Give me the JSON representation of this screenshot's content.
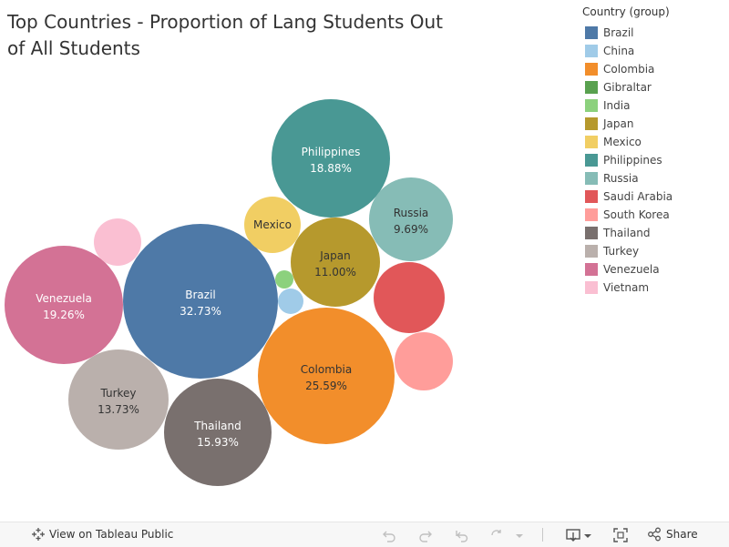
{
  "title": "Top Countries - Proportion of Lang Students Out of All Students",
  "legend": {
    "title": "Country (group)",
    "items": [
      {
        "label": "Brazil",
        "color": "#4e79a7"
      },
      {
        "label": "China",
        "color": "#a0cbe8"
      },
      {
        "label": "Colombia",
        "color": "#f28e2b"
      },
      {
        "label": "Gibraltar",
        "color": "#59a14f"
      },
      {
        "label": "India",
        "color": "#8cd17d"
      },
      {
        "label": "Japan",
        "color": "#b6992d"
      },
      {
        "label": "Mexico",
        "color": "#f1ce63"
      },
      {
        "label": "Philippines",
        "color": "#499894"
      },
      {
        "label": "Russia",
        "color": "#86bcb6"
      },
      {
        "label": "Saudi Arabia",
        "color": "#e15759"
      },
      {
        "label": "South Korea",
        "color": "#ff9d9a"
      },
      {
        "label": "Thailand",
        "color": "#79706e"
      },
      {
        "label": "Turkey",
        "color": "#bab0ac"
      },
      {
        "label": "Venezuela",
        "color": "#d37295"
      },
      {
        "label": "Vietnam",
        "color": "#fabfd2"
      }
    ]
  },
  "chart_data": {
    "type": "bubble",
    "title": "Top Countries - Proportion of Lang Students Out of All Students",
    "legend_position": "top-right",
    "series": [
      {
        "name": "Brazil",
        "value": 32.73,
        "label": "32.73%",
        "color": "#4e79a7"
      },
      {
        "name": "Colombia",
        "value": 25.59,
        "label": "25.59%",
        "color": "#f28e2b"
      },
      {
        "name": "Venezuela",
        "value": 19.26,
        "label": "19.26%",
        "color": "#d37295"
      },
      {
        "name": "Philippines",
        "value": 18.88,
        "label": "18.88%",
        "color": "#499894"
      },
      {
        "name": "Thailand",
        "value": 15.93,
        "label": "15.93%",
        "color": "#79706e"
      },
      {
        "name": "Turkey",
        "value": 13.73,
        "label": "13.73%",
        "color": "#bab0ac"
      },
      {
        "name": "Japan",
        "value": 11.0,
        "label": "11.00%",
        "color": "#b6992d"
      },
      {
        "name": "Russia",
        "value": 9.69,
        "label": "9.69%",
        "color": "#86bcb6"
      },
      {
        "name": "Saudi Arabia",
        "value": 7.5,
        "label": "",
        "color": "#e15759"
      },
      {
        "name": "Mexico",
        "value": 4.8,
        "label": "",
        "color": "#f1ce63"
      },
      {
        "name": "South Korea",
        "value": 5.2,
        "label": "",
        "color": "#ff9d9a"
      },
      {
        "name": "Vietnam",
        "value": 3.3,
        "label": "",
        "color": "#fabfd2"
      },
      {
        "name": "China",
        "value": 0.9,
        "label": "",
        "color": "#a0cbe8"
      },
      {
        "name": "India",
        "value": 0.45,
        "label": "",
        "color": "#8cd17d"
      }
    ],
    "name_shown": [
      "Brazil",
      "Colombia",
      "Venezuela",
      "Philippines",
      "Thailand",
      "Turkey",
      "Japan",
      "Russia",
      "Mexico"
    ]
  },
  "toolbar": {
    "view_label": "View on Tableau Public",
    "share_label": "Share"
  }
}
